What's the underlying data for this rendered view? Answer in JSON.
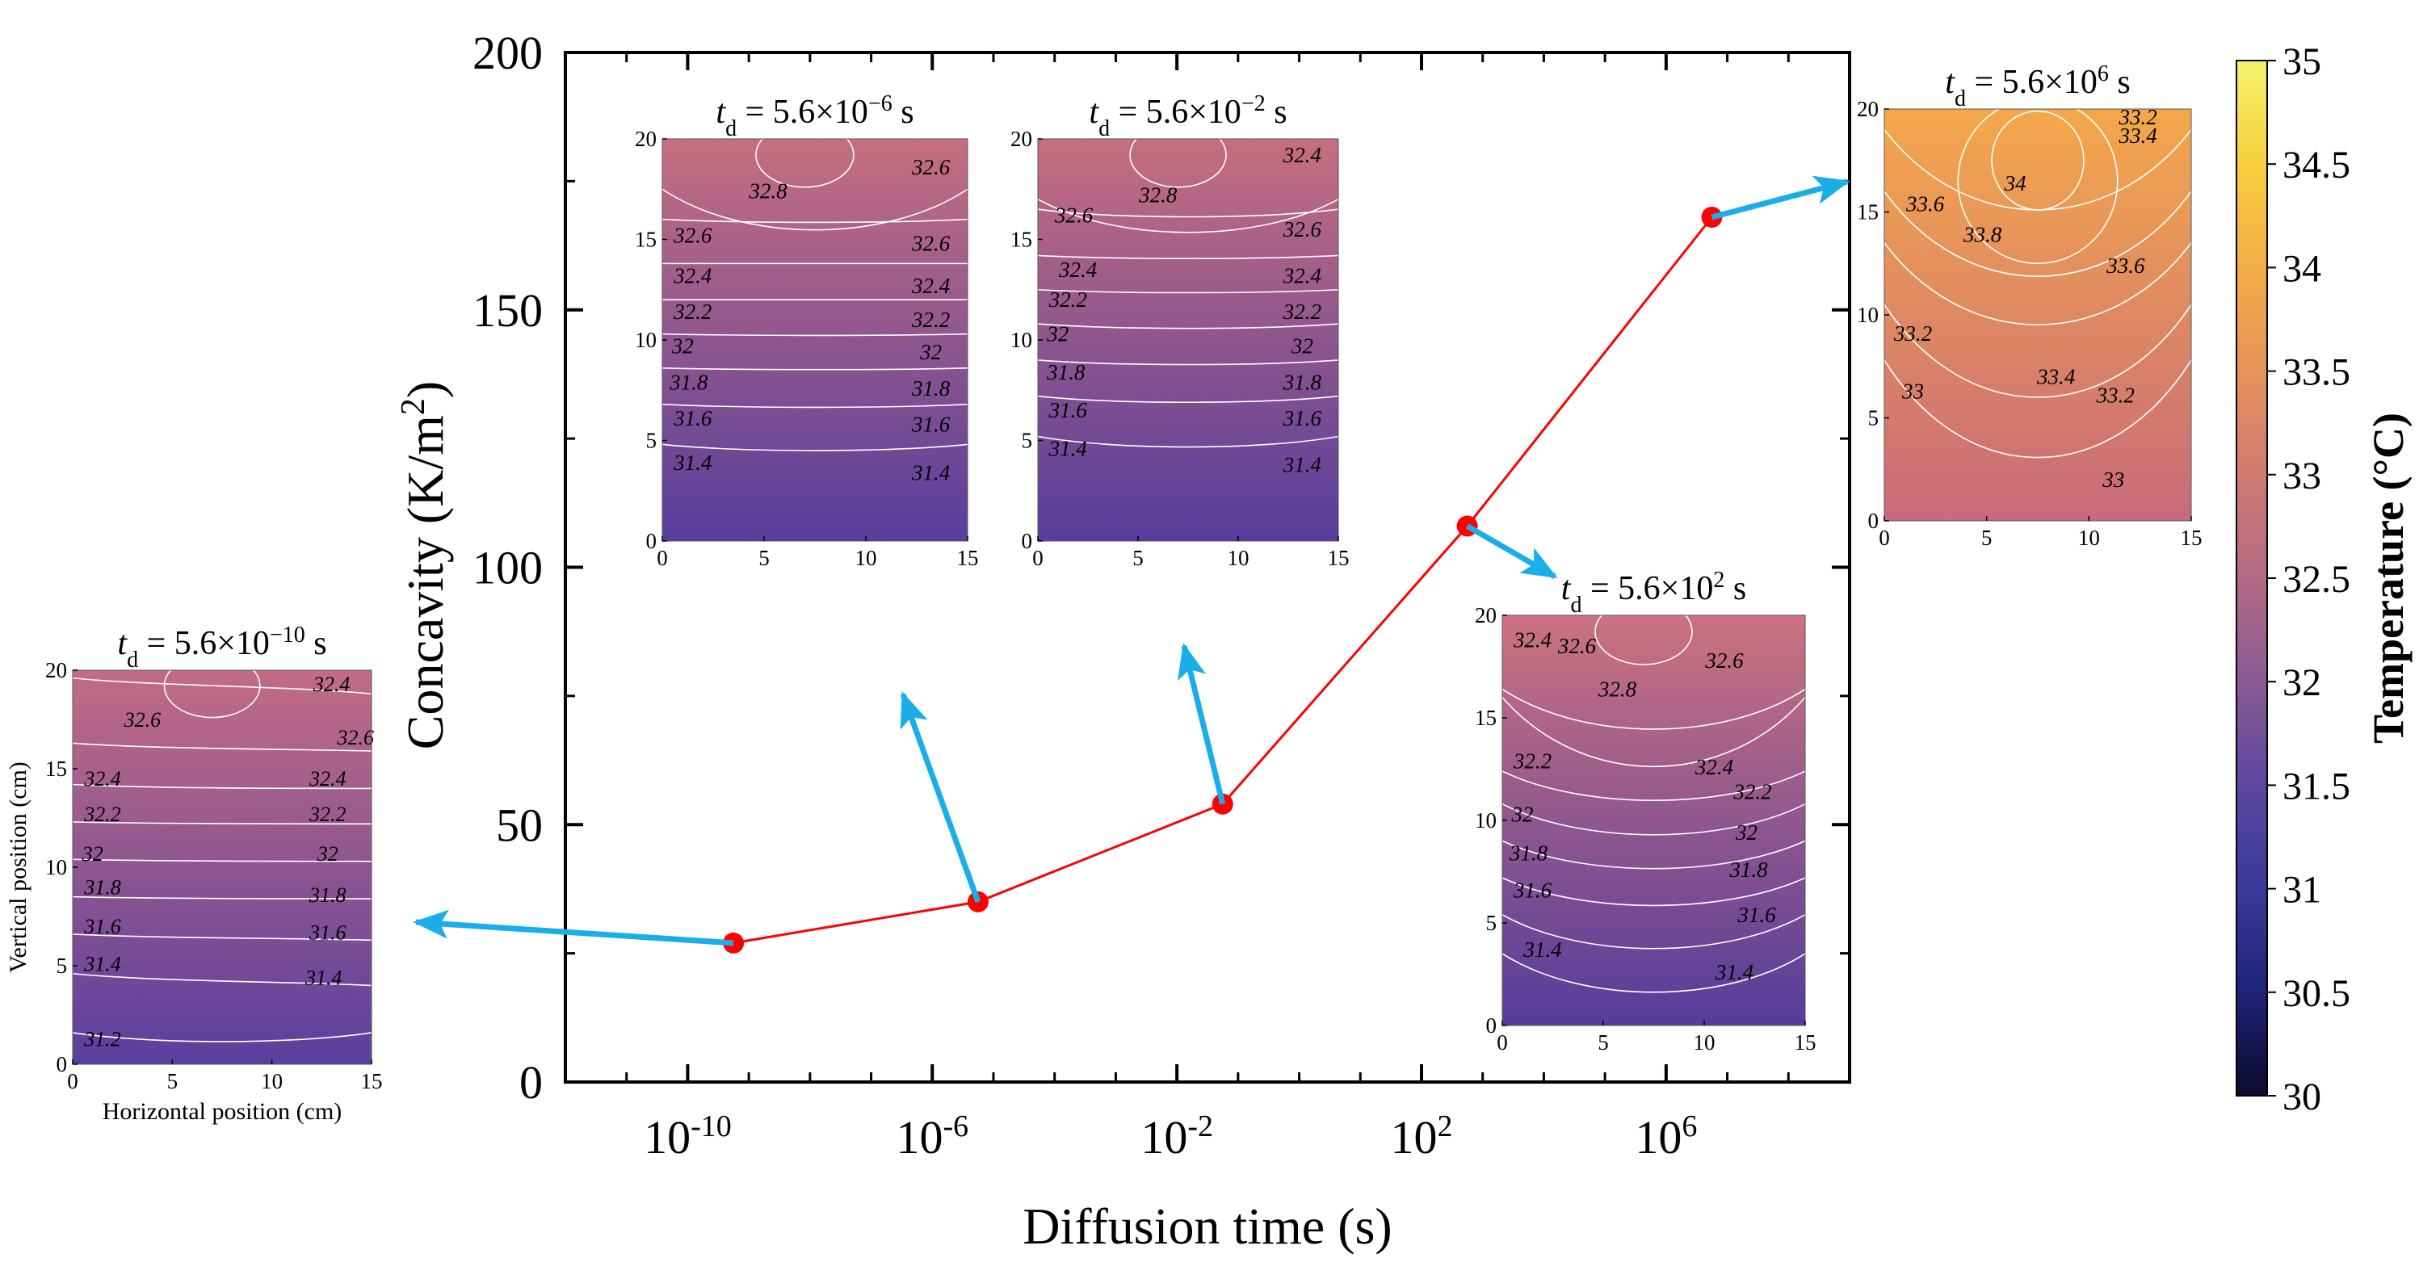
{
  "colors": {
    "line": "#ff0000",
    "point": "#ff0000",
    "arrow": "#1aaee8",
    "contour": "#ffffff",
    "axis": "#000000"
  },
  "chart_data": [
    {
      "id": "main",
      "type": "line",
      "title": "",
      "xlabel": "Diffusion time (s)",
      "ylabel": "Concavity (K/m²)",
      "xscale": "log",
      "xlim": [
        1e-12,
        1000000000.0
      ],
      "ylim": [
        0,
        200
      ],
      "xticks": [
        {
          "value": 1e-10,
          "base": "10",
          "exp": "-10"
        },
        {
          "value": 1e-06,
          "base": "10",
          "exp": "-6"
        },
        {
          "value": 0.01,
          "base": "10",
          "exp": "-2"
        },
        {
          "value": 100,
          "base": "10",
          "exp": "2"
        },
        {
          "value": 1000000,
          "base": "10",
          "exp": "6"
        }
      ],
      "yticks": [
        "0",
        "50",
        "100",
        "150",
        "200"
      ],
      "x": [
        5.6e-10,
        5.6e-06,
        0.056,
        560,
        5600000
      ],
      "values": [
        27,
        35,
        54,
        108,
        168
      ],
      "grid": false
    },
    {
      "id": "colorbar",
      "type": "heatmap",
      "label": "Temperature (°C)",
      "range": [
        30,
        35
      ],
      "ticks": [
        "30",
        "30.5",
        "31",
        "31.5",
        "32",
        "32.5",
        "33",
        "33.5",
        "34",
        "34.5",
        "35"
      ],
      "colormap_stops": [
        "#0d0a2b",
        "#1d2378",
        "#3a3a9a",
        "#5c47a0",
        "#8a5a94",
        "#b36a84",
        "#d07a72",
        "#e6925a",
        "#f3ad45",
        "#f8cf3c",
        "#f4f26c"
      ]
    },
    {
      "id": "inset-1",
      "type": "heatmap",
      "t_prefix": "5.6×10",
      "t_exp": "−10",
      "t_unit": "s",
      "xlabel": "Horizontal position (cm)",
      "ylabel": "Vertical position (cm)",
      "xticks": [
        "0",
        "5",
        "10",
        "15"
      ],
      "yticks": [
        "0",
        "5",
        "10",
        "15",
        "20"
      ],
      "top_color": "#c26c84",
      "bottom_color": "#5a3f9e",
      "contour_labels": [
        "32.6",
        "32.4",
        "32.6",
        "32.4",
        "32.4",
        "32.2",
        "32.2",
        "32",
        "32",
        "31.8",
        "31.8",
        "31.6",
        "31.6",
        "31.4",
        "31.4",
        "31.2"
      ]
    },
    {
      "id": "inset-2",
      "type": "heatmap",
      "t_prefix": "5.6×10",
      "t_exp": "−6",
      "t_unit": "s",
      "xticks": [
        "0",
        "5",
        "10",
        "15"
      ],
      "yticks": [
        "0",
        "5",
        "10",
        "15",
        "20"
      ],
      "top_color": "#c66e80",
      "bottom_color": "#573e9d",
      "contour_labels": [
        "32.8",
        "32.6",
        "32.6",
        "32.6",
        "32.4",
        "32.4",
        "32.2",
        "32.2",
        "32",
        "32",
        "31.8",
        "31.8",
        "31.6",
        "31.6",
        "31.4",
        "31.4"
      ]
    },
    {
      "id": "inset-3",
      "type": "heatmap",
      "t_prefix": "5.6×10",
      "t_exp": "−2",
      "t_unit": "s",
      "xticks": [
        "0",
        "5",
        "10",
        "15"
      ],
      "yticks": [
        "0",
        "5",
        "10",
        "15",
        "20"
      ],
      "top_color": "#c66e80",
      "bottom_color": "#563d9c",
      "contour_labels": [
        "32.8",
        "32.4",
        "32.6",
        "32.6",
        "32.4",
        "32.4",
        "32.2",
        "32.2",
        "32",
        "32",
        "31.8",
        "31.8",
        "31.6",
        "31.6",
        "31.4",
        "31.4"
      ]
    },
    {
      "id": "inset-4",
      "type": "heatmap",
      "t_prefix": "5.6×10",
      "t_exp": "2",
      "t_unit": "s",
      "xticks": [
        "0",
        "5",
        "10",
        "15"
      ],
      "yticks": [
        "0",
        "5",
        "10",
        "15",
        "20"
      ],
      "top_color": "#cc7280",
      "bottom_color": "#553c9c",
      "contour_labels": [
        "32.4",
        "32.6",
        "32.6",
        "32.8",
        "32.2",
        "32.4",
        "32.2",
        "32",
        "32",
        "31.8",
        "31.8",
        "31.6",
        "31.6",
        "31.4",
        "31.4"
      ]
    },
    {
      "id": "inset-5",
      "type": "heatmap",
      "t_prefix": "5.6×10",
      "t_exp": "6",
      "t_unit": "s",
      "xticks": [
        "0",
        "5",
        "10",
        "15"
      ],
      "yticks": [
        "0",
        "5",
        "10",
        "15",
        "20"
      ],
      "top_color": "#f4a84a",
      "bottom_color": "#c86a7a",
      "contour_labels": [
        "33.2",
        "33.4",
        "34",
        "33.6",
        "33.8",
        "33.6",
        "33.2",
        "33.4",
        "33.2",
        "33",
        "33"
      ]
    }
  ]
}
